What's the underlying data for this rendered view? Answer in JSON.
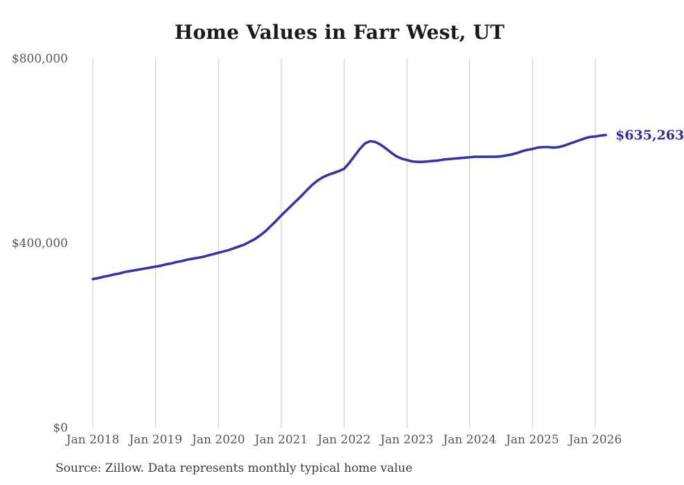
{
  "title": "Home Values in Farr West, UT",
  "source_note": "Source: Zillow. Data represents monthly typical home value",
  "end_label": "$635,263",
  "colors": {
    "line": "#3733a7",
    "end_label": "#322d9e",
    "gridline": "#c4c4c4",
    "title": "#1a1a1a",
    "axis_label": "#555555",
    "source": "#3a3a3a",
    "background": "#ffffff"
  },
  "chart_data": {
    "type": "line",
    "title": "Home Values in Farr West, UT",
    "xlabel": "",
    "ylabel": "",
    "x_tick_labels": [
      "Jan 2018",
      "Jan 2019",
      "Jan 2020",
      "Jan 2021",
      "Jan 2022",
      "Jan 2023",
      "Jan 2024",
      "Jan 2025",
      "Jan 2026"
    ],
    "y_tick_labels": [
      "$0",
      "$400,000",
      "$800,000"
    ],
    "y_tick_values": [
      0,
      400000,
      800000
    ],
    "ylim": [
      0,
      800000
    ],
    "grid": "vertical-only",
    "legend": "none",
    "x_start": "2018-01",
    "x_interval": "monthly",
    "last_value": 635263,
    "last_value_label": "$635,263",
    "series": [
      {
        "name": "Typical home value",
        "values": [
          323000,
          325000,
          328000,
          330000,
          333000,
          335000,
          338000,
          340000,
          342000,
          344000,
          346000,
          348000,
          350000,
          352000,
          355000,
          357000,
          360000,
          362000,
          365000,
          367000,
          369000,
          371000,
          374000,
          377000,
          380000,
          383000,
          386000,
          390000,
          394000,
          398000,
          404000,
          410000,
          418000,
          427000,
          438000,
          449000,
          461000,
          472000,
          483000,
          494000,
          505000,
          517000,
          528000,
          537000,
          544000,
          549000,
          553000,
          557000,
          562000,
          575000,
          590000,
          605000,
          617000,
          622000,
          620000,
          614000,
          606000,
          597000,
          589000,
          584000,
          581000,
          578000,
          577000,
          577000,
          578000,
          579000,
          580000,
          582000,
          583000,
          584000,
          585000,
          586000,
          587000,
          588000,
          588000,
          588000,
          588000,
          588000,
          589000,
          591000,
          593000,
          596000,
          600000,
          603000,
          605000,
          608000,
          609000,
          609000,
          608000,
          609000,
          612000,
          616000,
          620000,
          624000,
          628000,
          631000,
          632000,
          634000,
          635263
        ]
      }
    ]
  }
}
